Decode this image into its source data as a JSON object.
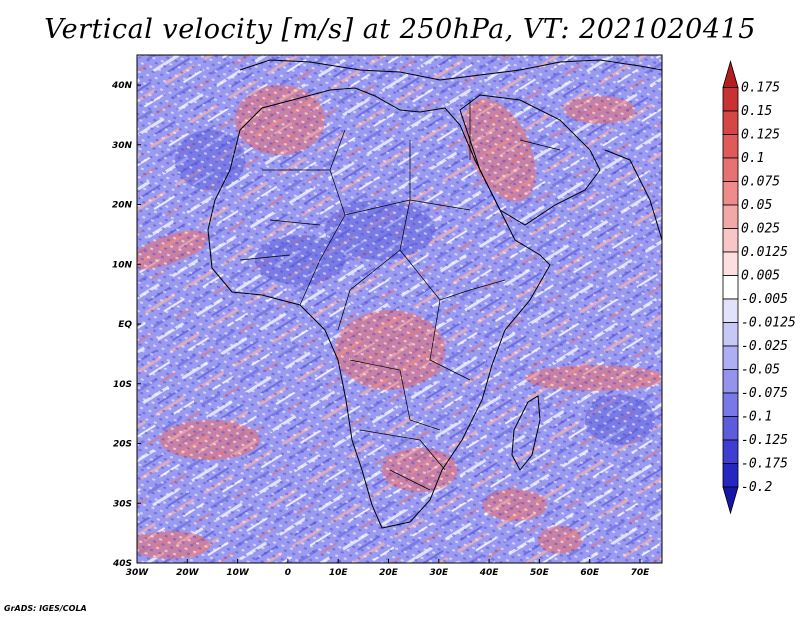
{
  "title": "Vertical velocity [m/s] at 250hPa, VT: 2021020415",
  "footer": "GrADS: IGES/COLA",
  "axes": {
    "lat_labels": [
      "40N",
      "30N",
      "20N",
      "10N",
      "EQ",
      "10S",
      "20S",
      "30S",
      "40S"
    ],
    "lon_labels": [
      "30W",
      "20W",
      "10W",
      "0",
      "10E",
      "20E",
      "30E",
      "40E",
      "50E",
      "60E",
      "70E"
    ]
  },
  "colorbar": {
    "labels": [
      "0.175",
      "0.15",
      "0.125",
      "0.1",
      "0.075",
      "0.05",
      "0.025",
      "0.0125",
      "0.005",
      "-0.005",
      "-0.0125",
      "-0.025",
      "-0.05",
      "-0.075",
      "-0.1",
      "-0.125",
      "-0.175",
      "-0.2"
    ],
    "colors": [
      "#b41e1e",
      "#c83232",
      "#d74646",
      "#e15a5a",
      "#e87272",
      "#ee8c8c",
      "#f3a8a8",
      "#f8c6c6",
      "#fce0e0",
      "#ffffff",
      "#e2e2fb",
      "#c8c8f6",
      "#aeaef2",
      "#9494ee",
      "#7878e6",
      "#5c5cdc",
      "#3e3ed2",
      "#2626c0",
      "#1616aa"
    ]
  }
}
